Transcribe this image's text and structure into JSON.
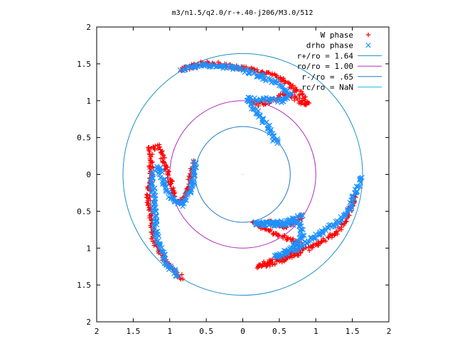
{
  "chart_data": {
    "type": "scatter",
    "title": "m3/n1.5/q2.0/r-+.40-j206/M3.0/512",
    "xlim": [
      -2,
      2
    ],
    "ylim": [
      -2,
      2
    ],
    "x_ticks": [
      -2,
      -1.5,
      -1,
      -0.5,
      0,
      0.5,
      1,
      1.5,
      2
    ],
    "y_ticks": [
      -2,
      -1.5,
      -1,
      -0.5,
      0,
      0.5,
      1,
      1.5,
      2
    ],
    "x_tick_labels": [
      "2",
      "1.5",
      "1",
      "0.5",
      "0",
      "0.5",
      "1",
      "1.5",
      "2"
    ],
    "y_tick_labels": [
      "2",
      "1.5",
      "1",
      "0.5",
      "0",
      "0.5",
      "1",
      "1.5",
      "2"
    ],
    "grid": false,
    "legend_position": "top-right",
    "series": [
      {
        "name": "W phase",
        "marker": "plus",
        "color": "#ff0000",
        "arms": [
          [
            [
              -0.83,
              1.42
            ],
            [
              -0.6,
              1.5
            ],
            [
              -0.35,
              1.5
            ],
            [
              -0.1,
              1.45
            ],
            [
              0.15,
              1.42
            ],
            [
              0.4,
              1.35
            ],
            [
              0.6,
              1.25
            ],
            [
              0.8,
              1.08
            ],
            [
              0.9,
              0.95
            ],
            [
              0.8,
              0.98
            ],
            [
              0.6,
              1.1
            ],
            [
              0.4,
              1.0
            ],
            [
              0.2,
              0.95
            ],
            [
              0.1,
              1.0
            ]
          ],
          [
            [
              -0.67,
              0.17
            ],
            [
              -0.75,
              -0.2
            ],
            [
              -0.85,
              -0.38
            ],
            [
              -0.95,
              -0.3
            ],
            [
              -1.0,
              -0.05
            ],
            [
              -1.08,
              0.2
            ],
            [
              -1.15,
              0.38
            ],
            [
              -1.27,
              0.35
            ],
            [
              -1.25,
              0.0
            ],
            [
              -1.3,
              -0.3
            ],
            [
              -1.26,
              -0.6
            ],
            [
              -1.22,
              -0.9
            ],
            [
              -1.12,
              -1.1
            ],
            [
              -1.0,
              -1.25
            ],
            [
              -0.82,
              -1.42
            ]
          ],
          [
            [
              0.82,
              -0.57
            ],
            [
              0.6,
              -0.72
            ],
            [
              0.4,
              -0.65
            ],
            [
              0.15,
              -0.67
            ],
            [
              0.35,
              -0.75
            ],
            [
              0.55,
              -0.85
            ],
            [
              0.78,
              -0.92
            ],
            [
              0.7,
              -1.05
            ],
            [
              0.45,
              -1.15
            ],
            [
              0.2,
              -1.25
            ],
            [
              0.4,
              -1.22
            ],
            [
              0.7,
              -1.1
            ],
            [
              0.95,
              -0.98
            ],
            [
              1.1,
              -0.9
            ],
            [
              1.3,
              -0.78
            ],
            [
              1.45,
              -0.55
            ],
            [
              1.55,
              -0.25
            ]
          ]
        ]
      },
      {
        "name": "drho phase",
        "marker": "cross",
        "color": "#1e90ff",
        "arms": [
          [
            [
              -0.83,
              1.42
            ],
            [
              -0.55,
              1.48
            ],
            [
              -0.3,
              1.47
            ],
            [
              -0.05,
              1.43
            ],
            [
              0.2,
              1.35
            ],
            [
              0.45,
              1.25
            ],
            [
              0.65,
              1.08
            ],
            [
              0.55,
              1.0
            ],
            [
              0.3,
              1.02
            ],
            [
              0.05,
              1.02
            ],
            [
              0.2,
              0.85
            ],
            [
              0.35,
              0.65
            ],
            [
              0.47,
              0.42
            ]
          ],
          [
            [
              -0.65,
              0.17
            ],
            [
              -0.7,
              -0.2
            ],
            [
              -0.85,
              -0.42
            ],
            [
              -1.0,
              -0.3
            ],
            [
              -1.1,
              -0.05
            ],
            [
              -1.15,
              0.1
            ],
            [
              -1.25,
              0.0
            ],
            [
              -1.22,
              -0.35
            ],
            [
              -1.2,
              -0.7
            ],
            [
              -1.15,
              -0.95
            ],
            [
              -1.05,
              -1.2
            ],
            [
              -0.88,
              -1.38
            ]
          ],
          [
            [
              0.82,
              -0.55
            ],
            [
              0.6,
              -0.65
            ],
            [
              0.17,
              -0.67
            ],
            [
              0.55,
              -0.68
            ],
            [
              0.78,
              -0.65
            ],
            [
              0.82,
              -0.85
            ],
            [
              0.65,
              -1.0
            ],
            [
              0.45,
              -1.12
            ],
            [
              0.65,
              -1.05
            ],
            [
              0.9,
              -0.9
            ],
            [
              1.1,
              -0.78
            ],
            [
              1.3,
              -0.65
            ],
            [
              1.45,
              -0.5
            ],
            [
              1.55,
              -0.2
            ],
            [
              1.62,
              -0.05
            ]
          ]
        ]
      }
    ],
    "circles": [
      {
        "name": "r+/ro = 1.64",
        "label": "r+/ro = 1.64",
        "radius": 1.64,
        "color": "#1c8fc8"
      },
      {
        "name": "ro/ro = 1.00",
        "label": "ro/ro = 1.00",
        "radius": 1.0,
        "color": "#b030c0"
      },
      {
        "name": "r-/ro = .65",
        "label": "r-/ro = .65",
        "radius": 0.65,
        "color": "#1c78c8"
      },
      {
        "name": "rc/ro = NaN",
        "label": "rc/ro = NaN",
        "radius": null,
        "color": "#20c0e8"
      }
    ]
  }
}
